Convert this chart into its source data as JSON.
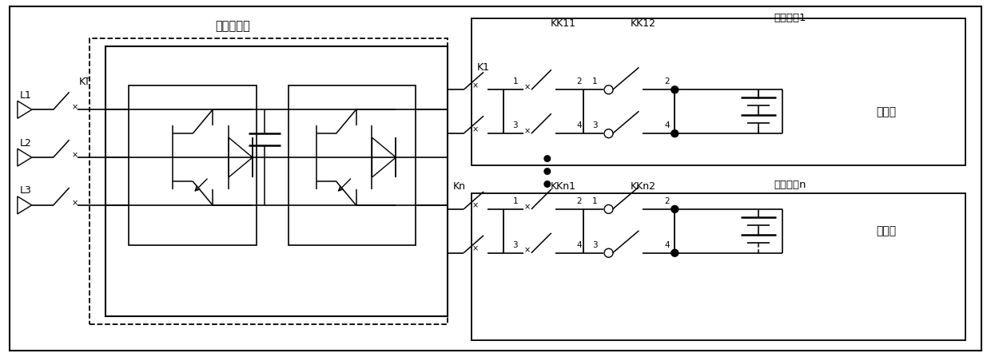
{
  "bg": "#ffffff",
  "lc": "#000000",
  "figsize": [
    12.4,
    4.47
  ],
  "dpi": 100,
  "texts": {
    "inverter": "储能变流器",
    "module1": "电池模块1",
    "modulen": "电池模块n",
    "KK11": "KK11",
    "KK12": "KK12",
    "KKn1": "KKn1",
    "KKn2": "KKn2",
    "battery": "电池簇",
    "L1": "L1",
    "L2": "L2",
    "L3": "L3",
    "KT": "KT",
    "K1": "K1",
    "Kn": "Kn"
  }
}
